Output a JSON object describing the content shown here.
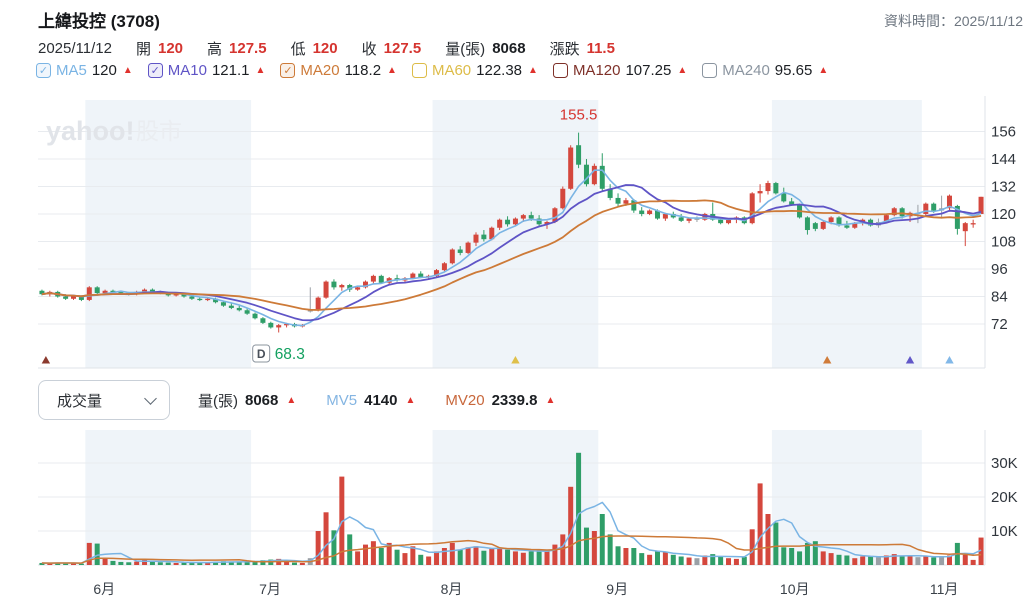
{
  "header": {
    "title": "上緯投控 (3708)",
    "data_time": "資料時間：2025/11/12",
    "date": "2025/11/12",
    "quote": [
      {
        "label": "開",
        "value": "120",
        "dark": false
      },
      {
        "label": "高",
        "value": "127.5",
        "dark": false
      },
      {
        "label": "低",
        "value": "120",
        "dark": false
      },
      {
        "label": "收",
        "value": "127.5",
        "dark": false
      },
      {
        "label": "量(張)",
        "value": "8068",
        "dark": true
      },
      {
        "label": "漲跌",
        "value": "11.5",
        "dark": false
      }
    ]
  },
  "ma_legend": [
    {
      "label": "MA5",
      "value": "120",
      "checked": true,
      "color": "#7ab4e4"
    },
    {
      "label": "MA10",
      "value": "121.1",
      "checked": true,
      "color": "#5f54c6"
    },
    {
      "label": "MA20",
      "value": "118.2",
      "checked": true,
      "color": "#cd7a38"
    },
    {
      "label": "MA60",
      "value": "122.38",
      "checked": false,
      "color": "#ddbc48"
    },
    {
      "label": "MA120",
      "value": "107.25",
      "checked": false,
      "color": "#7e3028"
    },
    {
      "label": "MA240",
      "value": "95.65",
      "checked": false,
      "color": "#8b95a0"
    }
  ],
  "volume_header": {
    "dropdown_value": "成交量",
    "items": [
      {
        "label": "量(張)",
        "value": "8068",
        "label_color": "#2a2e33"
      },
      {
        "label": "MV5",
        "value": "4140",
        "label_color": "#84b5e2"
      },
      {
        "label": "MV20",
        "value": "2339.8",
        "label_color": "#c8673b"
      }
    ]
  },
  "chart_data": {
    "type": "candlestick_with_volume",
    "watermark_bold": "yahoo!",
    "watermark_cjk": "股市",
    "price_axis": {
      "ticks": [
        156,
        144,
        132,
        120,
        108,
        96,
        84,
        72
      ]
    },
    "volume_axis": {
      "ticks": [
        {
          "label": "30K",
          "v": 30000
        },
        {
          "label": "20K",
          "v": 20000
        },
        {
          "label": "10K",
          "v": 10000
        }
      ]
    },
    "months": [
      {
        "label": "6月",
        "start": 6,
        "shaded": true
      },
      {
        "label": "7月",
        "start": 27,
        "shaded": false
      },
      {
        "label": "8月",
        "start": 50,
        "shaded": true
      },
      {
        "label": "9月",
        "start": 71,
        "shaded": false
      },
      {
        "label": "10月",
        "start": 93,
        "shaded": true
      },
      {
        "label": "11月",
        "start": 112,
        "shaded": false
      }
    ],
    "annotations": {
      "peak_label": "155.5",
      "low_marker": "D",
      "low_value": "68.3"
    },
    "bottom_markers": [
      {
        "i": 1,
        "color": "#8b3a2e"
      },
      {
        "i": 60.5,
        "color": "#dfc04a"
      },
      {
        "i": 100,
        "color": "#d07c3a"
      },
      {
        "i": 110.5,
        "color": "#6157c8"
      },
      {
        "i": 115.5,
        "color": "#82b8e8"
      }
    ],
    "colors": {
      "up": "#d4473d",
      "down": "#2f9e68",
      "neutral": "#9aa0a6",
      "ma5": "#7ab4e4",
      "ma10": "#5f54c6",
      "ma20": "#cd7a38",
      "mv5": "#7ab4e4",
      "mv20": "#cd7a38",
      "band": "#eff4f9",
      "grid": "#e8ebef",
      "axis_text": "#30363d",
      "low_value_green": "#12a05f",
      "annotation_red": "#d5342f"
    },
    "candles_format": "[open, high, low, close, volume_lots, optional 1 = neutral/gray candle]",
    "candles": [
      [
        86.5,
        87,
        84.5,
        85,
        600
      ],
      [
        85,
        86.5,
        84,
        86,
        500
      ],
      [
        86,
        86.5,
        83.5,
        84,
        700
      ],
      [
        84,
        85,
        82.5,
        83,
        600
      ],
      [
        83,
        84.5,
        82.5,
        84,
        500
      ],
      [
        84,
        84.5,
        82,
        82.5,
        400
      ],
      [
        82.5,
        88.5,
        82,
        88,
        6500
      ],
      [
        88,
        88.5,
        85,
        85.5,
        6300
      ],
      [
        85.5,
        87,
        85,
        86.5,
        2000
      ],
      [
        86.5,
        87,
        85.5,
        86,
        1200
      ],
      [
        86,
        86.5,
        85,
        85.5,
        900
      ],
      [
        85.5,
        86,
        84.5,
        85,
        800
      ],
      [
        85,
        86.5,
        84.5,
        86,
        1000
      ],
      [
        86,
        87.5,
        85.5,
        87,
        1500
      ],
      [
        87,
        87.5,
        85.5,
        86,
        1200
      ],
      [
        86,
        86.5,
        85,
        85.5,
        800
      ],
      [
        85.5,
        86,
        84,
        84.5,
        700
      ],
      [
        84.5,
        85.5,
        84,
        85,
        600
      ],
      [
        85,
        85.5,
        83.5,
        84,
        700
      ],
      [
        84,
        84.5,
        82.5,
        83,
        900
      ],
      [
        83,
        84,
        82,
        82.5,
        800
      ],
      [
        82.5,
        83.5,
        82,
        83,
        600
      ],
      [
        83,
        83.5,
        81,
        81.5,
        900
      ],
      [
        81.5,
        82,
        79.5,
        80,
        1100
      ],
      [
        80,
        81,
        78.5,
        79,
        1000
      ],
      [
        79,
        80,
        77.5,
        78,
        900
      ],
      [
        78,
        79,
        76,
        76.5,
        1000
      ],
      [
        76.5,
        77,
        74,
        74.5,
        1200
      ],
      [
        74.5,
        75,
        72,
        72.5,
        1400
      ],
      [
        72.5,
        73,
        70,
        70.5,
        1600
      ],
      [
        70.5,
        72,
        68.3,
        71.5,
        1800
      ],
      [
        71.5,
        72.5,
        70.5,
        72,
        900
      ],
      [
        72,
        72.5,
        70.5,
        71,
        700
      ],
      [
        71,
        72,
        70.5,
        71.5,
        600
      ],
      [
        77.5,
        88,
        77,
        78,
        2000,
        1
      ],
      [
        78,
        84,
        77.5,
        83.5,
        10000
      ],
      [
        83.5,
        91,
        83,
        90.5,
        15500
      ],
      [
        90.5,
        91.5,
        87,
        88,
        10200
      ],
      [
        88,
        89.5,
        86.5,
        89,
        26000
      ],
      [
        89,
        89.5,
        86,
        87,
        9000
      ],
      [
        87,
        88.5,
        86.5,
        88,
        4000
      ],
      [
        88,
        91,
        87.5,
        90.5,
        6000
      ],
      [
        90.5,
        93.5,
        89.5,
        93,
        7000
      ],
      [
        93,
        93.5,
        89.5,
        90,
        5000
      ],
      [
        90,
        92.5,
        89,
        92,
        6500
      ],
      [
        92,
        93.5,
        90.5,
        91,
        4500
      ],
      [
        91,
        92.5,
        90,
        92,
        3500
      ],
      [
        92,
        94.5,
        91.5,
        94,
        5500
      ],
      [
        94,
        95,
        92,
        92.5,
        3000
      ],
      [
        92.5,
        93.5,
        91.5,
        93,
        2500
      ],
      [
        93,
        96,
        92.5,
        95.5,
        4000
      ],
      [
        95.5,
        99,
        95,
        98.5,
        5000
      ],
      [
        98.5,
        105,
        98,
        104.5,
        6500
      ],
      [
        104.5,
        106,
        102,
        103,
        4500
      ],
      [
        103,
        108,
        102.5,
        107.5,
        5200
      ],
      [
        107.5,
        112,
        106,
        111,
        5500
      ],
      [
        111,
        113,
        108,
        109,
        4200
      ],
      [
        109,
        114.5,
        108.5,
        114,
        4800
      ],
      [
        114,
        118,
        113,
        117.5,
        5000
      ],
      [
        117.5,
        119,
        114.5,
        115.5,
        4500
      ],
      [
        115.5,
        118.5,
        115,
        118,
        4000
      ],
      [
        118,
        120,
        116.5,
        119.5,
        3600
      ],
      [
        119.5,
        121,
        117,
        118,
        4000
      ],
      [
        118,
        119.5,
        114.5,
        115.5,
        4400
      ],
      [
        115.5,
        117,
        113.5,
        116.5,
        4100
      ],
      [
        116.5,
        123,
        116,
        122.5,
        6000
      ],
      [
        122.5,
        132,
        122,
        131,
        9000
      ],
      [
        131,
        150,
        130.5,
        149,
        23000
      ],
      [
        150,
        155.5,
        140,
        141.5,
        33000
      ],
      [
        141.5,
        144,
        132,
        133,
        11000
      ],
      [
        133,
        142,
        132.5,
        141,
        10000
      ],
      [
        141,
        146.5,
        130,
        131,
        15000
      ],
      [
        131,
        133,
        126,
        127,
        9000
      ],
      [
        127,
        129,
        123,
        124.5,
        5500
      ],
      [
        124.5,
        127,
        123.5,
        126,
        5000
      ],
      [
        126,
        126.5,
        120.5,
        121.5,
        5000
      ],
      [
        121.5,
        123,
        119,
        120,
        3500
      ],
      [
        120,
        122,
        119.5,
        121.5,
        3000
      ],
      [
        121.5,
        122,
        117.5,
        118,
        4000
      ],
      [
        118,
        120.5,
        117,
        120,
        3800
      ],
      [
        120,
        121,
        118,
        118.5,
        3000
      ],
      [
        118.5,
        120,
        116.5,
        117,
        2500
      ],
      [
        117,
        118.5,
        116,
        118,
        2200
      ],
      [
        118,
        119,
        116.5,
        117.5,
        2000,
        1
      ],
      [
        117.5,
        120.5,
        117,
        120,
        2800
      ],
      [
        120,
        125,
        117,
        117.5,
        3200
      ],
      [
        117.5,
        118.5,
        115.5,
        116,
        2500
      ],
      [
        116,
        118,
        115.5,
        117.5,
        2000
      ],
      [
        117.5,
        119,
        116,
        118.5,
        1800
      ],
      [
        118.5,
        119,
        115.5,
        116,
        2400
      ],
      [
        116,
        129.5,
        115.5,
        129,
        10500
      ],
      [
        129,
        133,
        125,
        130,
        24000
      ],
      [
        130,
        134.5,
        128.5,
        133.5,
        15000
      ],
      [
        133.5,
        134,
        128.5,
        129,
        12500
      ],
      [
        129,
        131.5,
        125,
        125.5,
        5200
      ],
      [
        125.5,
        127,
        123.5,
        124,
        5000
      ],
      [
        124,
        124.5,
        118,
        118.5,
        4000
      ],
      [
        118.5,
        119,
        111,
        113,
        6500
      ],
      [
        116,
        116.5,
        112.5,
        113.5,
        7000
      ],
      [
        113.5,
        117,
        113,
        116.5,
        4000
      ],
      [
        116.5,
        119,
        115.5,
        118.5,
        3500
      ],
      [
        118.5,
        119,
        114.5,
        115,
        3000
      ],
      [
        115,
        117,
        113.5,
        114,
        2800
      ],
      [
        114,
        116.5,
        113.5,
        116,
        2000
      ],
      [
        116,
        118,
        115,
        117.5,
        2500
      ],
      [
        117.5,
        118,
        114.5,
        115,
        2500
      ],
      [
        115,
        118,
        114,
        116.5,
        2300,
        1
      ],
      [
        116.5,
        120,
        116,
        119.5,
        2800
      ],
      [
        119.5,
        123,
        119,
        122.5,
        3200
      ],
      [
        122.5,
        123,
        118,
        119,
        2600
      ],
      [
        119,
        121,
        116.5,
        120.5,
        2600
      ],
      [
        120.5,
        124,
        116,
        120,
        2300,
        1
      ],
      [
        120,
        125,
        119,
        124.5,
        2500
      ],
      [
        124.5,
        125,
        120.5,
        121.5,
        2200
      ],
      [
        121.5,
        128,
        118,
        122.5,
        2600,
        1
      ],
      [
        122.5,
        128.5,
        121,
        128,
        2800
      ],
      [
        123.5,
        124,
        111,
        113.5,
        6500
      ],
      [
        112.5,
        116.5,
        106,
        116,
        3000
      ],
      [
        115.5,
        117.5,
        114,
        116,
        1500
      ],
      [
        120,
        127.5,
        120,
        127.5,
        8068
      ]
    ]
  }
}
